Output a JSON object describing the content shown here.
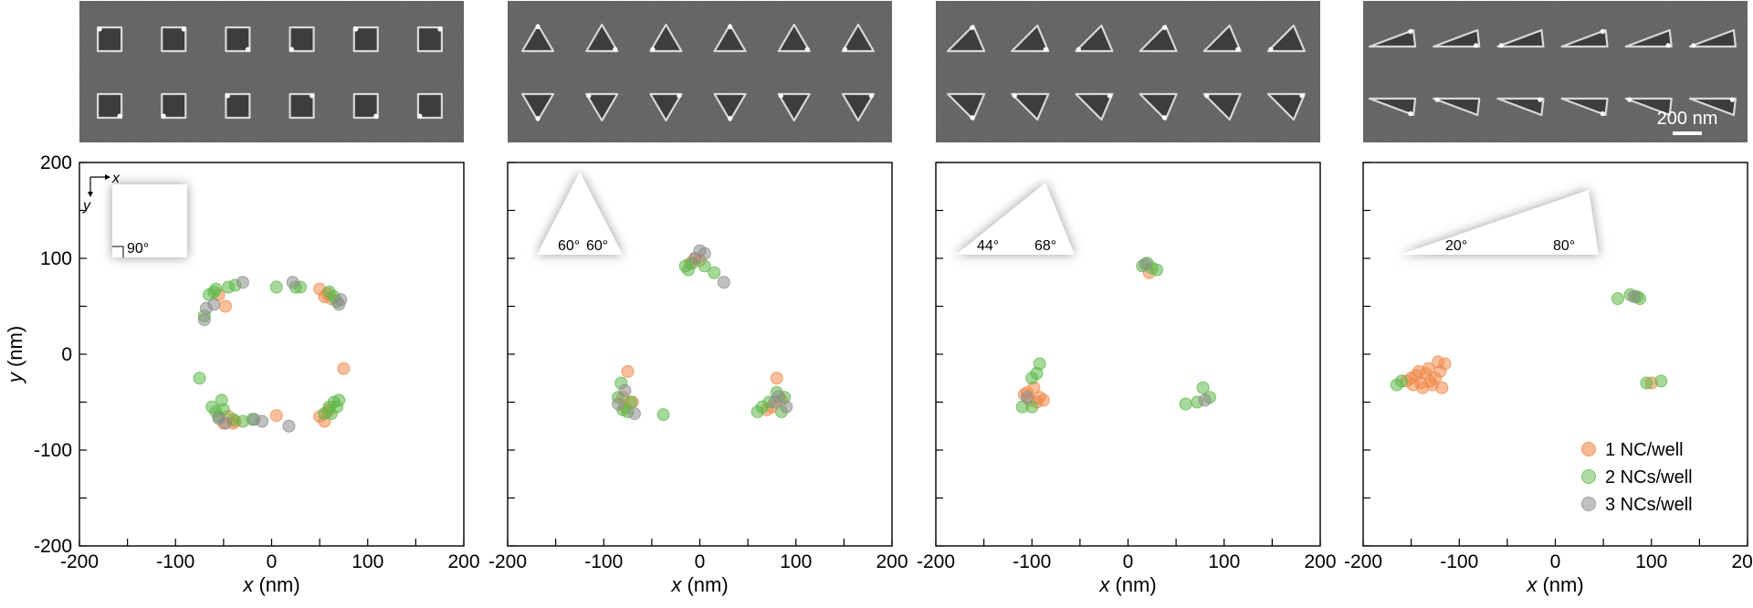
{
  "figure": {
    "scale_bar_label": "200 nm",
    "micrograph_icons": [
      "square-well",
      "equilateral-triangle-well",
      "obtuse-triangle-well",
      "acute-triangle-well"
    ]
  },
  "legend": {
    "position": "bottom-right",
    "entries": [
      {
        "label": "1 NC/well",
        "color": "#f08a4b"
      },
      {
        "label": "2 NCs/well",
        "color": "#5fb84a"
      },
      {
        "label": "3 NCs/well",
        "color": "#8c8c8c"
      }
    ]
  },
  "chart_data": [
    {
      "type": "scatter",
      "title": "",
      "xlabel_var": "x",
      "xlabel_unit": "(nm)",
      "ylabel_var": "y",
      "ylabel_unit": "(nm)",
      "xlim": [
        -200,
        200
      ],
      "ylim": [
        -200,
        200
      ],
      "xticks": [
        -200,
        -100,
        0,
        100,
        200
      ],
      "yticks": [
        -200,
        -100,
        0,
        100,
        200
      ],
      "grid": false,
      "inset": {
        "shape": "square",
        "angles": [
          "90°"
        ],
        "axis_x": "x",
        "axis_y": "y"
      },
      "series": [
        {
          "name": "1 NC/well",
          "color": "#f08a4b",
          "points": [
            [
              -48,
              50
            ],
            [
              -55,
              62
            ],
            [
              50,
              68
            ],
            [
              58,
              63
            ],
            [
              62,
              58
            ],
            [
              55,
              60
            ],
            [
              -45,
              -65
            ],
            [
              -38,
              -70
            ],
            [
              -40,
              -72
            ],
            [
              5,
              -64
            ],
            [
              50,
              -65
            ],
            [
              58,
              -60
            ],
            [
              60,
              -58
            ],
            [
              55,
              -70
            ],
            [
              75,
              -15
            ],
            [
              -50,
              -72
            ]
          ]
        },
        {
          "name": "2 NCs/well",
          "color": "#5fb84a",
          "points": [
            [
              -65,
              62
            ],
            [
              -60,
              65
            ],
            [
              -58,
              68
            ],
            [
              -45,
              70
            ],
            [
              -38,
              72
            ],
            [
              -70,
              40
            ],
            [
              5,
              70
            ],
            [
              25,
              70
            ],
            [
              30,
              70
            ],
            [
              60,
              65
            ],
            [
              65,
              60
            ],
            [
              68,
              55
            ],
            [
              -75,
              -25
            ],
            [
              -62,
              -55
            ],
            [
              -58,
              -60
            ],
            [
              -52,
              -48
            ],
            [
              -55,
              -65
            ],
            [
              -50,
              -58
            ],
            [
              -40,
              -68
            ],
            [
              -30,
              -70
            ],
            [
              -20,
              -68
            ],
            [
              60,
              -55
            ],
            [
              65,
              -50
            ],
            [
              70,
              -48
            ],
            [
              68,
              -55
            ],
            [
              55,
              -62
            ],
            [
              62,
              -62
            ]
          ]
        },
        {
          "name": "3 NCs/well",
          "color": "#8c8c8c",
          "points": [
            [
              -68,
              48
            ],
            [
              -70,
              36
            ],
            [
              -60,
              52
            ],
            [
              -30,
              75
            ],
            [
              22,
              75
            ],
            [
              70,
              52
            ],
            [
              72,
              57
            ],
            [
              -55,
              -67
            ],
            [
              -48,
              -72
            ],
            [
              -18,
              -68
            ],
            [
              -10,
              -70
            ],
            [
              18,
              -75
            ]
          ]
        }
      ]
    },
    {
      "type": "scatter",
      "title": "",
      "xlabel_var": "x",
      "xlabel_unit": "(nm)",
      "ylabel_var": "",
      "ylabel_unit": "",
      "xlim": [
        -200,
        200
      ],
      "ylim": [
        -200,
        200
      ],
      "xticks": [
        -200,
        -100,
        0,
        100,
        200
      ],
      "yticks": [
        -200,
        -100,
        0,
        100,
        200
      ],
      "grid": false,
      "inset": {
        "shape": "equilateral-triangle",
        "angles": [
          "60°",
          "60°"
        ]
      },
      "series": [
        {
          "name": "1 NC/well",
          "color": "#f08a4b",
          "points": [
            [
              0,
              98
            ],
            [
              -10,
              95
            ],
            [
              -80,
              -45
            ],
            [
              -78,
              -55
            ],
            [
              -75,
              -18
            ],
            [
              -70,
              -50
            ],
            [
              80,
              -25
            ],
            [
              75,
              -55
            ],
            [
              85,
              -48
            ],
            [
              70,
              -58
            ],
            [
              -5,
              100
            ]
          ]
        },
        {
          "name": "2 NCs/well",
          "color": "#5fb84a",
          "points": [
            [
              -12,
              88
            ],
            [
              -8,
              95
            ],
            [
              5,
              92
            ],
            [
              15,
              85
            ],
            [
              -85,
              -45
            ],
            [
              -82,
              -30
            ],
            [
              -80,
              -58
            ],
            [
              -72,
              -50
            ],
            [
              -38,
              -63
            ],
            [
              -75,
              -60
            ],
            [
              60,
              -60
            ],
            [
              65,
              -55
            ],
            [
              72,
              -50
            ],
            [
              80,
              -40
            ],
            [
              88,
              -45
            ],
            [
              85,
              -60
            ],
            [
              -15,
              92
            ]
          ]
        },
        {
          "name": "3 NCs/well",
          "color": "#8c8c8c",
          "points": [
            [
              0,
              108
            ],
            [
              5,
              105
            ],
            [
              -5,
              100
            ],
            [
              25,
              75
            ],
            [
              -85,
              -52
            ],
            [
              -78,
              -38
            ],
            [
              -68,
              -62
            ],
            [
              78,
              -50
            ],
            [
              82,
              -44
            ],
            [
              90,
              -55
            ]
          ]
        }
      ]
    },
    {
      "type": "scatter",
      "title": "",
      "xlabel_var": "x",
      "xlabel_unit": "(nm)",
      "ylabel_var": "",
      "ylabel_unit": "",
      "xlim": [
        -200,
        200
      ],
      "ylim": [
        -200,
        200
      ],
      "xticks": [
        -200,
        -100,
        0,
        100,
        200
      ],
      "yticks": [
        -200,
        -100,
        0,
        100,
        200
      ],
      "grid": false,
      "inset": {
        "shape": "obtuse-triangle",
        "angles": [
          "44°",
          "68°"
        ]
      },
      "series": [
        {
          "name": "1 NC/well",
          "color": "#f08a4b",
          "points": [
            [
              22,
              85
            ],
            [
              -105,
              -40
            ],
            [
              -98,
              -35
            ],
            [
              -92,
              -45
            ],
            [
              -88,
              -48
            ],
            [
              -102,
              -48
            ],
            [
              -95,
              -50
            ],
            [
              -108,
              -42
            ]
          ]
        },
        {
          "name": "2 NCs/well",
          "color": "#5fb84a",
          "points": [
            [
              15,
              92
            ],
            [
              20,
              95
            ],
            [
              25,
              90
            ],
            [
              30,
              88
            ],
            [
              -95,
              -20
            ],
            [
              -92,
              -10
            ],
            [
              -110,
              -55
            ],
            [
              -100,
              -55
            ],
            [
              60,
              -52
            ],
            [
              72,
              -50
            ],
            [
              78,
              -35
            ],
            [
              85,
              -45
            ],
            [
              -100,
              -25
            ]
          ]
        },
        {
          "name": "3 NCs/well",
          "color": "#8c8c8c",
          "points": [
            [
              -105,
              -45
            ],
            [
              18,
              94
            ],
            [
              80,
              -48
            ]
          ]
        }
      ]
    },
    {
      "type": "scatter",
      "title": "",
      "xlabel_var": "x",
      "xlabel_unit": "(nm)",
      "ylabel_var": "",
      "ylabel_unit": "",
      "xlim": [
        -200,
        200
      ],
      "ylim": [
        -200,
        200
      ],
      "xticks": [
        -200,
        -100,
        0,
        100,
        200
      ],
      "yticks": [
        -200,
        -100,
        0,
        100,
        200
      ],
      "grid": false,
      "inset": {
        "shape": "acute-triangle",
        "angles": [
          "20°",
          "80°"
        ]
      },
      "series": [
        {
          "name": "1 NC/well",
          "color": "#f08a4b",
          "points": [
            [
              -155,
              -28
            ],
            [
              -150,
              -25
            ],
            [
              -145,
              -22
            ],
            [
              -140,
              -30
            ],
            [
              -135,
              -20
            ],
            [
              -130,
              -28
            ],
            [
              -125,
              -25
            ],
            [
              -120,
              -18
            ],
            [
              -115,
              -10
            ],
            [
              -148,
              -32
            ],
            [
              -138,
              -35
            ],
            [
              -128,
              -32
            ],
            [
              -142,
              -18
            ],
            [
              -132,
              -15
            ],
            [
              -118,
              -35
            ],
            [
              -122,
              -8
            ],
            [
              100,
              -30
            ]
          ]
        },
        {
          "name": "2 NCs/well",
          "color": "#5fb84a",
          "points": [
            [
              -165,
              -32
            ],
            [
              -160,
              -28
            ],
            [
              65,
              58
            ],
            [
              78,
              62
            ],
            [
              85,
              60
            ],
            [
              88,
              58
            ],
            [
              95,
              -30
            ],
            [
              110,
              -28
            ]
          ]
        },
        {
          "name": "3 NCs/well",
          "color": "#8c8c8c",
          "points": [
            [
              82,
              60
            ]
          ]
        }
      ]
    }
  ]
}
